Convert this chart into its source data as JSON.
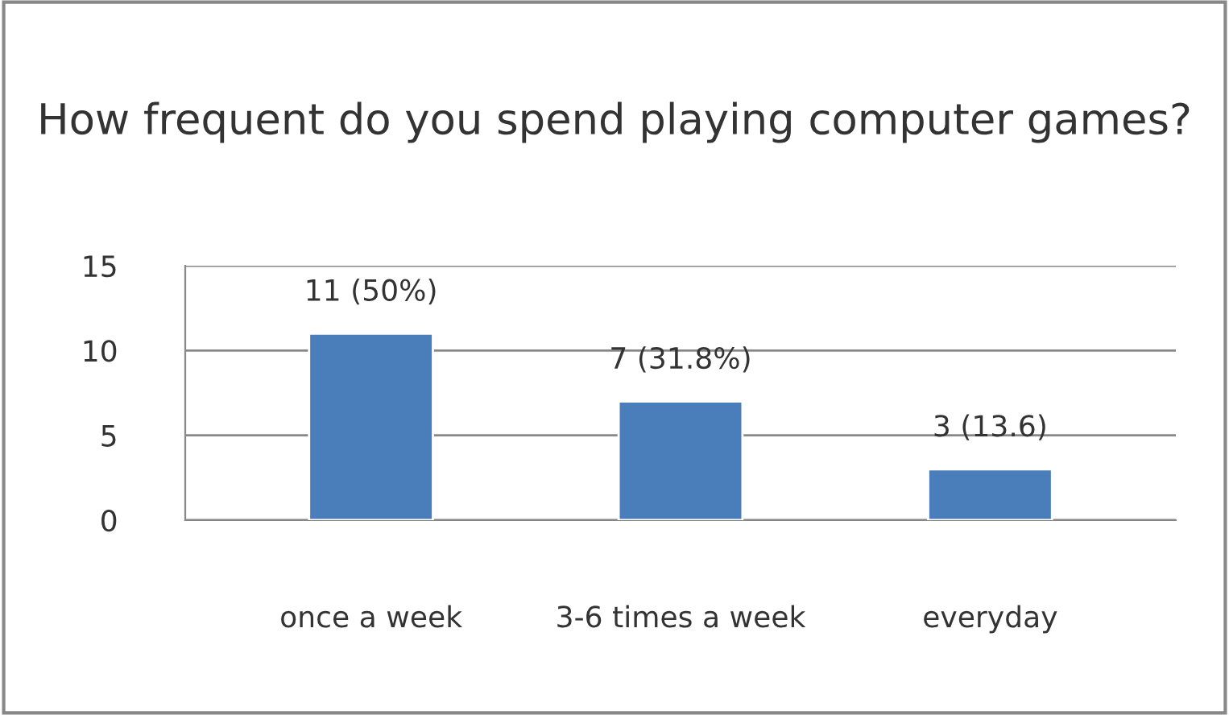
{
  "chart_data": {
    "type": "bar",
    "title": "How frequent do you spend playing computer games?",
    "categories": [
      "once a week",
      "3-6 times a week",
      "everyday"
    ],
    "values": [
      11,
      7,
      3
    ],
    "value_labels": [
      "11 (50%)",
      "7 (31.8%)",
      "3 (13.6)"
    ],
    "color": "#4a7ebb",
    "ylim": [
      0,
      15
    ],
    "yticks": [
      0,
      5,
      10,
      15
    ],
    "grid": "y",
    "legend": false
  }
}
